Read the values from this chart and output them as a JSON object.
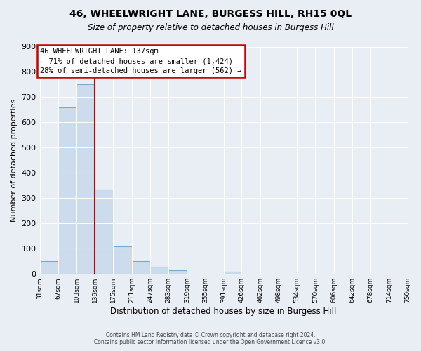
{
  "title": "46, WHEELWRIGHT LANE, BURGESS HILL, RH15 0QL",
  "subtitle": "Size of property relative to detached houses in Burgess Hill",
  "xlabel": "Distribution of detached houses by size in Burgess Hill",
  "ylabel": "Number of detached properties",
  "bar_edges": [
    31,
    67,
    103,
    139,
    175,
    211,
    247,
    283,
    319,
    355,
    391,
    426,
    462,
    498,
    534,
    570,
    606,
    642,
    678,
    714,
    750
  ],
  "bar_heights": [
    52,
    660,
    750,
    335,
    108,
    52,
    27,
    15,
    0,
    0,
    8,
    0,
    0,
    0,
    0,
    0,
    0,
    0,
    0,
    0
  ],
  "bar_color": "#ccdcec",
  "bar_edgecolor": "#7aaac8",
  "property_line_x": 139,
  "property_line_color": "#cc0000",
  "ylim": [
    0,
    900
  ],
  "yticks": [
    0,
    100,
    200,
    300,
    400,
    500,
    600,
    700,
    800,
    900
  ],
  "annotation_title": "46 WHEELWRIGHT LANE: 137sqm",
  "annotation_line1": "← 71% of detached houses are smaller (1,424)",
  "annotation_line2": "28% of semi-detached houses are larger (562) →",
  "annotation_box_color": "#cc0000",
  "footer_line1": "Contains HM Land Registry data © Crown copyright and database right 2024.",
  "footer_line2": "Contains public sector information licensed under the Open Government Licence v3.0.",
  "background_color": "#e8eef4",
  "grid_color": "#ffffff"
}
